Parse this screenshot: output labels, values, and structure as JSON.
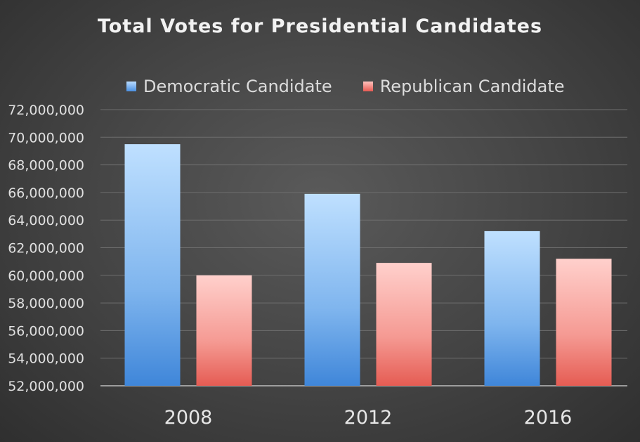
{
  "chart_data": {
    "type": "bar",
    "title": "Total Votes for Presidential Candidates",
    "categories": [
      "2008",
      "2012",
      "2016"
    ],
    "series": [
      {
        "name": "Democratic Candidate",
        "color": "#5b9bd5",
        "values": [
          69500000,
          65900000,
          63200000
        ]
      },
      {
        "name": "Republican Candidate",
        "color": "#e8534a",
        "values": [
          60000000,
          60900000,
          61200000
        ]
      }
    ],
    "ylim": [
      52000000,
      72000000
    ],
    "yticks": [
      "52,000,000",
      "54,000,000",
      "56,000,000",
      "58,000,000",
      "60,000,000",
      "62,000,000",
      "64,000,000",
      "66,000,000",
      "68,000,000",
      "70,000,000",
      "72,000,000"
    ],
    "grid": true,
    "legend_position": "top"
  }
}
